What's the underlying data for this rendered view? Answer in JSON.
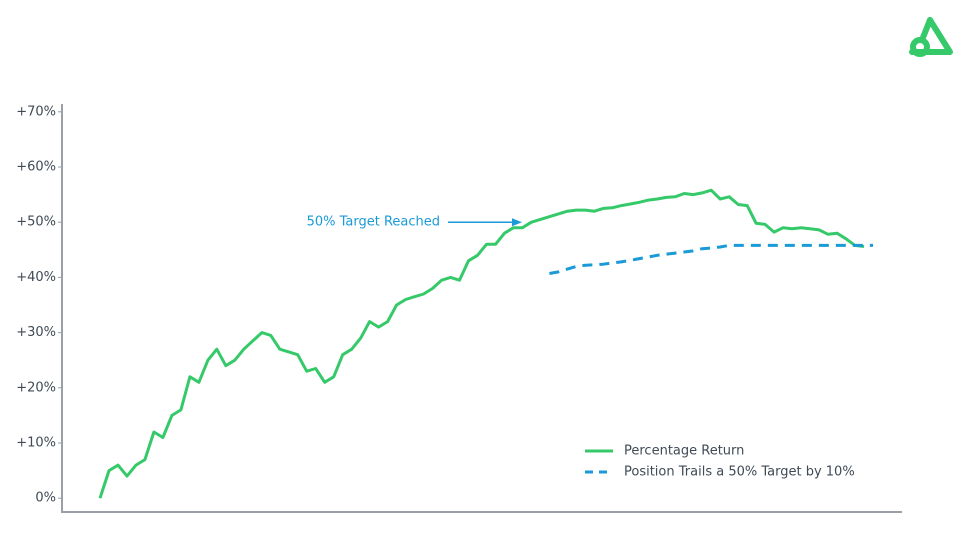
{
  "chart_data": {
    "type": "line",
    "annotation": "50% Target Reached",
    "ylim": [
      -2.5,
      72.5
    ],
    "yticks": [
      {
        "value": 0,
        "label": "0%"
      },
      {
        "value": 10,
        "label": "+10%"
      },
      {
        "value": 20,
        "label": "+20%"
      },
      {
        "value": 30,
        "label": "+30%"
      },
      {
        "value": 40,
        "label": "+40%"
      },
      {
        "value": 50,
        "label": "+50%"
      },
      {
        "value": 60,
        "label": "+60%"
      },
      {
        "value": 70,
        "label": "+70%"
      }
    ],
    "annotation_value": 50,
    "legend": "lower right",
    "series": [
      {
        "name": "Percentage Return",
        "color": "#35c96a",
        "dash": false,
        "values": [
          0,
          5,
          6,
          4,
          6,
          7,
          12,
          11,
          15,
          16,
          22,
          21,
          25,
          27,
          24,
          25,
          27,
          28.5,
          30,
          29.5,
          27,
          26.5,
          26,
          23,
          23.5,
          21,
          22,
          26,
          27,
          29,
          32,
          31,
          32,
          35,
          36,
          36.5,
          37,
          38,
          39.5,
          40,
          39.5,
          43,
          44,
          46,
          46,
          48,
          49,
          49,
          50,
          50.5,
          51,
          51.5,
          52,
          52.2,
          52.2,
          52,
          52.5,
          52.6,
          53,
          53.3,
          53.6,
          54,
          54.2,
          54.5,
          54.6,
          55.2,
          55,
          55.3,
          55.8,
          54.2,
          54.6,
          53.2,
          53,
          49.8,
          49.6,
          48.2,
          49,
          48.8,
          49,
          48.8,
          48.6,
          47.8,
          48,
          47,
          45.8,
          45.6
        ]
      },
      {
        "name": "Position Trails a 50% Target by 10%",
        "color": "#1a9ad6",
        "dash": true,
        "values": [
          null,
          null,
          null,
          null,
          null,
          null,
          null,
          null,
          null,
          null,
          null,
          null,
          null,
          null,
          null,
          null,
          null,
          null,
          null,
          null,
          null,
          null,
          null,
          null,
          null,
          null,
          null,
          null,
          null,
          null,
          null,
          null,
          null,
          null,
          null,
          null,
          null,
          null,
          null,
          null,
          null,
          null,
          null,
          null,
          null,
          null,
          null,
          null,
          null,
          null,
          40.7,
          41,
          41.5,
          42,
          42.2,
          42.3,
          42.4,
          42.6,
          42.8,
          43.1,
          43.4,
          43.7,
          44,
          44.2,
          44.4,
          44.6,
          44.8,
          45.2,
          45.3,
          45.5,
          45.8,
          45.8,
          45.8,
          45.8,
          45.8,
          45.8,
          45.8,
          45.8,
          45.8,
          45.8,
          45.8,
          45.8,
          45.8,
          45.8,
          45.8,
          45.8,
          45.8
        ]
      }
    ]
  }
}
